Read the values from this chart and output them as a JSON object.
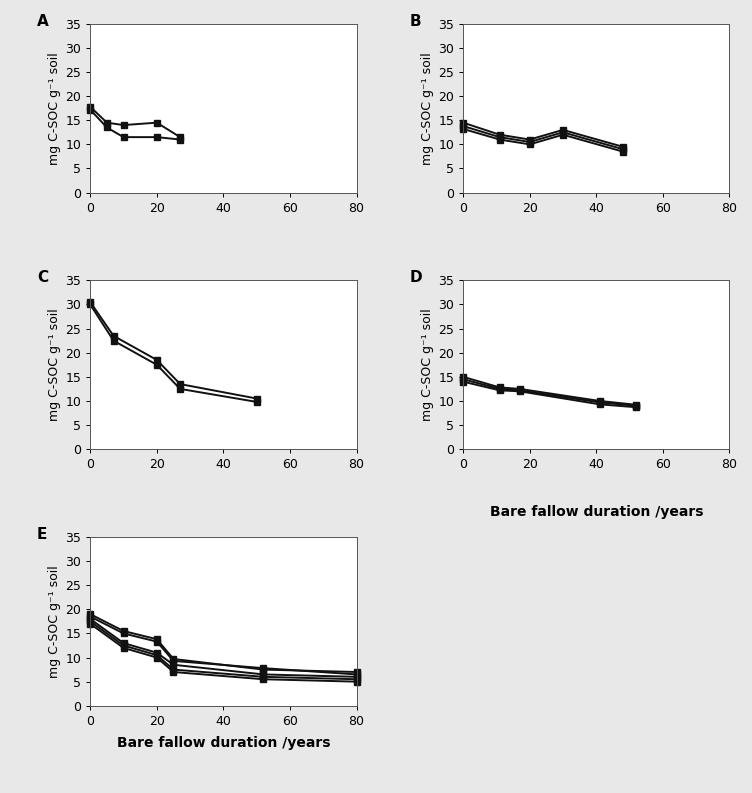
{
  "A": {
    "label": "A",
    "x": [
      0,
      5,
      10,
      20,
      27
    ],
    "series": [
      [
        17.8,
        14.5,
        14.0,
        14.5,
        11.5
      ],
      [
        17.2,
        13.5,
        11.5,
        11.5,
        11.0
      ]
    ],
    "xlim": [
      0,
      80
    ],
    "ylim": [
      0,
      35
    ],
    "yticks": [
      0,
      5,
      10,
      15,
      20,
      25,
      30,
      35
    ],
    "xticks": [
      0,
      20,
      40,
      60,
      80
    ]
  },
  "B": {
    "label": "B",
    "x": [
      0,
      11,
      20,
      30,
      48
    ],
    "series": [
      [
        14.5,
        12.0,
        11.0,
        13.0,
        9.5
      ],
      [
        13.8,
        11.5,
        10.5,
        12.5,
        9.0
      ],
      [
        13.2,
        11.0,
        10.0,
        12.0,
        8.5
      ]
    ],
    "xlim": [
      0,
      80
    ],
    "ylim": [
      0,
      35
    ],
    "yticks": [
      0,
      5,
      10,
      15,
      20,
      25,
      30,
      35
    ],
    "xticks": [
      0,
      20,
      40,
      60,
      80
    ]
  },
  "C": {
    "label": "C",
    "x": [
      0,
      7,
      20,
      27,
      50
    ],
    "series": [
      [
        30.5,
        23.5,
        18.5,
        13.5,
        10.5
      ],
      [
        30.0,
        22.5,
        17.5,
        12.5,
        9.8
      ]
    ],
    "xlim": [
      0,
      80
    ],
    "ylim": [
      0,
      35
    ],
    "yticks": [
      0,
      5,
      10,
      15,
      20,
      25,
      30,
      35
    ],
    "xticks": [
      0,
      20,
      40,
      60,
      80
    ]
  },
  "D": {
    "label": "D",
    "x": [
      0,
      11,
      17,
      41,
      52
    ],
    "series": [
      [
        15.0,
        12.8,
        12.5,
        10.0,
        9.2
      ],
      [
        14.5,
        12.5,
        12.2,
        9.7,
        9.0
      ],
      [
        14.0,
        12.2,
        12.0,
        9.3,
        8.7
      ]
    ],
    "xlim": [
      0,
      80
    ],
    "ylim": [
      0,
      35
    ],
    "yticks": [
      0,
      5,
      10,
      15,
      20,
      25,
      30,
      35
    ],
    "xticks": [
      0,
      20,
      40,
      60,
      80
    ]
  },
  "E": {
    "label": "E",
    "x": [
      0,
      10,
      20,
      25,
      52,
      80
    ],
    "series": [
      [
        19.0,
        15.5,
        13.8,
        9.7,
        7.5,
        7.0
      ],
      [
        18.5,
        15.0,
        13.3,
        9.3,
        7.8,
        6.5
      ],
      [
        18.0,
        13.0,
        11.0,
        8.5,
        6.5,
        6.0
      ],
      [
        17.5,
        12.5,
        10.5,
        7.5,
        6.0,
        5.5
      ],
      [
        17.0,
        12.0,
        10.0,
        7.0,
        5.5,
        5.0
      ]
    ],
    "xlim": [
      0,
      80
    ],
    "ylim": [
      0,
      35
    ],
    "yticks": [
      0,
      5,
      10,
      15,
      20,
      25,
      30,
      35
    ],
    "xticks": [
      0,
      20,
      40,
      60,
      80
    ]
  },
  "ylabel": "mg C-SOC g⁻¹ soil",
  "xlabel_E": "Bare fallow duration /years",
  "xlabel_D_shared": "Bare fallow duration /years",
  "line_color": "#111111",
  "marker": "s",
  "markersize": 5,
  "linewidth": 1.4,
  "bg_color": "#e8e8e8",
  "ax_bg": "#ffffff",
  "panel_label_fontsize": 11,
  "axis_tick_fontsize": 9,
  "ylabel_fontsize": 9,
  "xlabel_fontsize": 10
}
